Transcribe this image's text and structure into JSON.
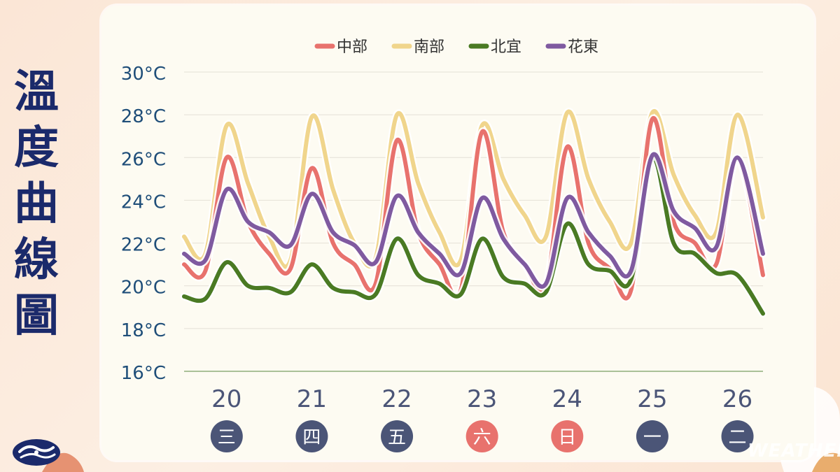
{
  "side_title": [
    "溫",
    "度",
    "曲",
    "線",
    "圖"
  ],
  "watermark": "WEATHER",
  "colors": {
    "title": "#1b2a6b",
    "axis_text": "#1f4e79",
    "weekday_dark": "#4b5577",
    "weekday_weekend": "#e8726d"
  },
  "chart_data": {
    "type": "line",
    "ylim": [
      16,
      30
    ],
    "ytick_values": [
      16,
      18,
      20,
      22,
      24,
      26,
      28,
      30
    ],
    "ytick_labels": [
      "16°C",
      "18°C",
      "20°C",
      "22°C",
      "24°C",
      "26°C",
      "28°C",
      "30°C"
    ],
    "legend_position": "top-center",
    "grid": true,
    "x_range": [
      19.5,
      26.3
    ],
    "days": [
      {
        "date": "20",
        "weekday": "三",
        "weekend": false
      },
      {
        "date": "21",
        "weekday": "四",
        "weekend": false
      },
      {
        "date": "22",
        "weekday": "五",
        "weekend": false
      },
      {
        "date": "23",
        "weekday": "六",
        "weekend": true
      },
      {
        "date": "24",
        "weekday": "日",
        "weekend": true
      },
      {
        "date": "25",
        "weekday": "一",
        "weekend": false
      },
      {
        "date": "26",
        "weekday": "二",
        "weekend": false
      }
    ],
    "x": [
      19.5,
      19.75,
      20.0,
      20.25,
      20.5,
      20.75,
      21.0,
      21.25,
      21.5,
      21.75,
      22.0,
      22.25,
      22.5,
      22.75,
      23.0,
      23.25,
      23.5,
      23.75,
      24.0,
      24.25,
      24.5,
      24.75,
      25.0,
      25.25,
      25.5,
      25.75,
      26.0,
      26.3
    ],
    "series": [
      {
        "name": "中部",
        "color": "#e8726d",
        "values": [
          21.0,
          20.7,
          26.0,
          23.0,
          21.5,
          20.8,
          25.5,
          22.0,
          21.0,
          20.1,
          26.8,
          22.5,
          21.0,
          19.8,
          27.2,
          22.5,
          21.0,
          20.0,
          26.5,
          22.0,
          20.8,
          19.8,
          27.8,
          23.0,
          22.0,
          21.0,
          26.0,
          20.5
        ]
      },
      {
        "name": "南部",
        "color": "#f0d58c",
        "values": [
          22.3,
          21.5,
          27.5,
          24.8,
          22.3,
          21.2,
          27.9,
          24.5,
          22.0,
          21.3,
          28.0,
          24.8,
          22.5,
          21.2,
          27.5,
          25.0,
          23.3,
          22.3,
          28.1,
          25.0,
          23.0,
          22.0,
          28.1,
          25.2,
          23.3,
          22.5,
          28.0,
          23.2
        ]
      },
      {
        "name": "北宜",
        "color": "#4a7a23",
        "values": [
          19.5,
          19.4,
          21.1,
          20.0,
          19.9,
          19.7,
          21.0,
          19.9,
          19.7,
          19.6,
          22.2,
          20.5,
          20.1,
          19.6,
          22.2,
          20.4,
          20.1,
          19.7,
          22.9,
          21.0,
          20.7,
          20.3,
          26.0,
          22.0,
          21.5,
          20.6,
          20.5,
          18.7
        ]
      },
      {
        "name": "花東",
        "color": "#7f5aa0",
        "values": [
          21.5,
          21.2,
          24.5,
          23.0,
          22.5,
          21.9,
          24.3,
          22.5,
          21.9,
          21.1,
          24.2,
          22.5,
          21.5,
          20.6,
          24.1,
          22.2,
          21.0,
          20.1,
          24.1,
          22.5,
          21.4,
          20.7,
          26.1,
          23.5,
          22.7,
          21.8,
          26.0,
          21.5
        ]
      }
    ]
  }
}
